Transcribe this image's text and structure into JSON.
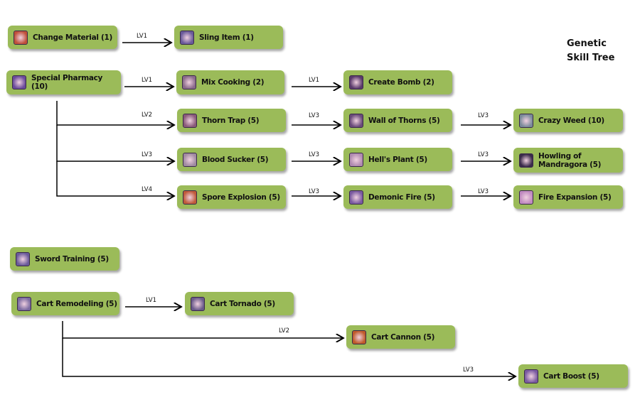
{
  "title": {
    "line1": "Genetic",
    "line2": "Skill Tree"
  },
  "box_color": "#9bbb59",
  "nodes": [
    {
      "label": "Change Material (1)",
      "icon": "change-material-icon",
      "icon_color": "#c0503a"
    },
    {
      "label": "Sling Item (1)",
      "icon": "sling-item-icon",
      "icon_color": "#6a5a9a"
    },
    {
      "label": "Special Pharmacy (10)",
      "icon": "special-pharmacy-icon",
      "icon_color": "#6a4a9a"
    },
    {
      "label": "Mix Cooking (2)",
      "icon": "mix-cooking-icon",
      "icon_color": "#8a6a8a"
    },
    {
      "label": "Create Bomb (2)",
      "icon": "create-bomb-icon",
      "icon_color": "#5a3a6a"
    },
    {
      "label": "Thorn Trap (5)",
      "icon": "thorn-trap-icon",
      "icon_color": "#8a5a7a"
    },
    {
      "label": "Wall of Thorns (5)",
      "icon": "wall-of-thorns-icon",
      "icon_color": "#6a4a7a"
    },
    {
      "label": "Crazy Weed (10)",
      "icon": "crazy-weed-icon",
      "icon_color": "#7a8a9a"
    },
    {
      "label": "Blood Sucker (5)",
      "icon": "blood-sucker-icon",
      "icon_color": "#a08aa0"
    },
    {
      "label": "Hell's Plant (5)",
      "icon": "hells-plant-icon",
      "icon_color": "#b08ab0"
    },
    {
      "label": "Howling of Mandragora (5)",
      "icon": "howling-of-mandragora-icon",
      "icon_color": "#3a2a4a"
    },
    {
      "label": "Spore Explosion (5)",
      "icon": "spore-explosion-icon",
      "icon_color": "#c05a3a"
    },
    {
      "label": "Demonic Fire (5)",
      "icon": "demonic-fire-icon",
      "icon_color": "#7a5aa0"
    },
    {
      "label": "Fire Expansion (5)",
      "icon": "fire-expansion-icon",
      "icon_color": "#c08ac0"
    },
    {
      "label": "Sword Training (5)",
      "icon": "sword-training-icon",
      "icon_color": "#6a5a9a"
    },
    {
      "label": "Cart Remodeling (5)",
      "icon": "cart-remodeling-icon",
      "icon_color": "#7a6aa0"
    },
    {
      "label": "Cart Tornado (5)",
      "icon": "cart-tornado-icon",
      "icon_color": "#6a5a8a"
    },
    {
      "label": "Cart Cannon (5)",
      "icon": "cart-cannon-icon",
      "icon_color": "#c05a2a"
    },
    {
      "label": "Cart Boost (5)",
      "icon": "cart-boost-icon",
      "icon_color": "#7a5aa0"
    }
  ],
  "edges": [
    {
      "from": "Change Material (1)",
      "to": "Sling Item (1)",
      "level": "LV1"
    },
    {
      "from": "Special Pharmacy (10)",
      "to": "Mix Cooking (2)",
      "level": "LV1"
    },
    {
      "from": "Mix Cooking (2)",
      "to": "Create Bomb (2)",
      "level": "LV1"
    },
    {
      "from": "Special Pharmacy (10)",
      "to": "Thorn Trap (5)",
      "level": "LV2"
    },
    {
      "from": "Thorn Trap (5)",
      "to": "Wall of Thorns (5)",
      "level": "LV3"
    },
    {
      "from": "Wall of Thorns (5)",
      "to": "Crazy Weed (10)",
      "level": "LV3"
    },
    {
      "from": "Special Pharmacy (10)",
      "to": "Blood Sucker (5)",
      "level": "LV3"
    },
    {
      "from": "Blood Sucker (5)",
      "to": "Hell's Plant (5)",
      "level": "LV3"
    },
    {
      "from": "Hell's Plant (5)",
      "to": "Howling of Mandragora (5)",
      "level": "LV3"
    },
    {
      "from": "Special Pharmacy (10)",
      "to": "Spore Explosion (5)",
      "level": "LV4"
    },
    {
      "from": "Spore Explosion (5)",
      "to": "Demonic Fire (5)",
      "level": "LV3"
    },
    {
      "from": "Demonic Fire (5)",
      "to": "Fire Expansion (5)",
      "level": "LV3"
    },
    {
      "from": "Cart Remodeling (5)",
      "to": "Cart Tornado (5)",
      "level": "LV1"
    },
    {
      "from": "Cart Remodeling (5)",
      "to": "Cart Cannon (5)",
      "level": "LV2"
    },
    {
      "from": "Cart Remodeling (5)",
      "to": "Cart Boost (5)",
      "level": "LV3"
    }
  ]
}
